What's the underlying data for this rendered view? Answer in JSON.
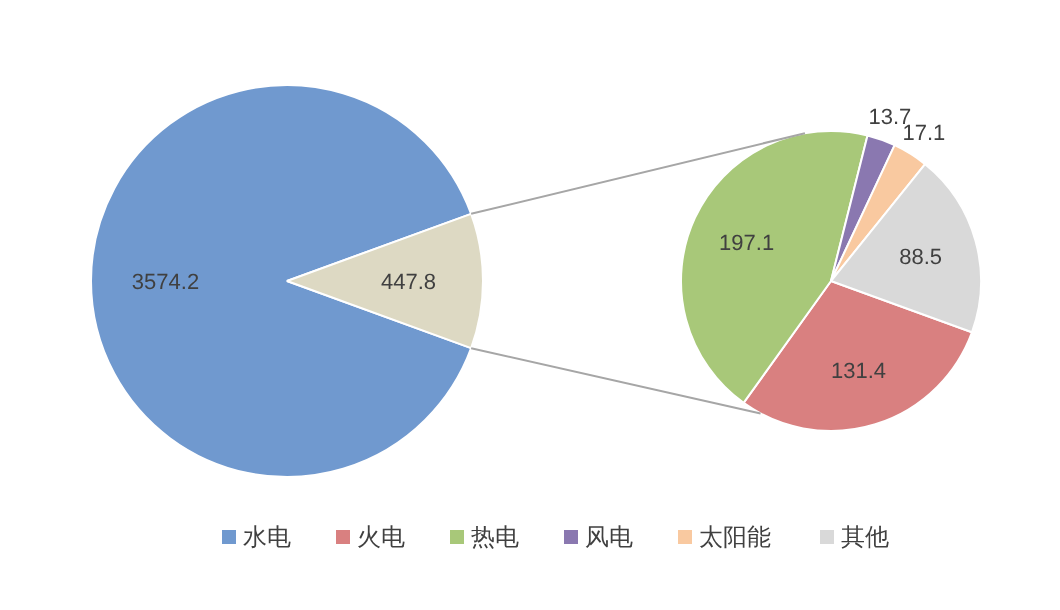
{
  "chart_data": [
    {
      "type": "pie",
      "categories": [
        "水电",
        null
      ],
      "values": [
        3574.2,
        447.8
      ],
      "colors": [
        "#7099cf",
        "#ddd9c3"
      ],
      "data_labels": true,
      "legend": "bottom"
    },
    {
      "type": "pie",
      "categories": [
        "火电",
        "热电",
        "风电",
        "太阳能",
        "其他"
      ],
      "values": [
        131.4,
        197.1,
        13.7,
        17.1,
        88.5
      ],
      "colors": [
        "#d98080",
        "#a8c879",
        "#8a78b0",
        "#f9c9a0",
        "#d9d9d9"
      ],
      "data_labels": true,
      "legend": "bottom"
    }
  ]
}
